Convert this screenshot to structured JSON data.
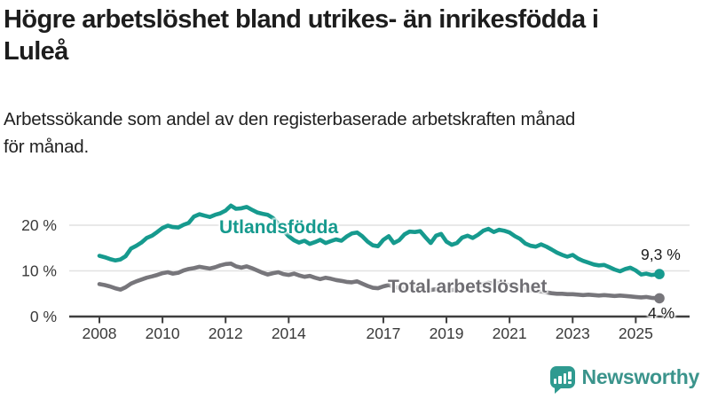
{
  "header": {
    "title_lines": [
      "Högre arbetslöshet bland utrikes- än inrikesfödda i",
      "Luleå"
    ],
    "subtitle_lines": [
      "Arbetssökande som andel av den registerbaserade arbetskraften månad",
      "för månad."
    ]
  },
  "colors": {
    "accent_teal": "#169a8e",
    "total_gray": "#77767b",
    "grid": "#e1e1e1",
    "axis": "#3f3f3f",
    "tick_label": "#3a3a3a",
    "logo_teal": "#3b948c"
  },
  "chart_data": {
    "type": "line",
    "grid": "horizontal-only",
    "x_axis": {
      "ticks": [
        2008,
        2010,
        2012,
        2014,
        2017,
        2019,
        2021,
        2023,
        2025
      ],
      "range": [
        2008,
        2025.75
      ]
    },
    "y_axis": {
      "ticks": [
        {
          "value": 0,
          "label": "0 %"
        },
        {
          "value": 10,
          "label": "10 %"
        },
        {
          "value": 20,
          "label": "20 %"
        }
      ],
      "range": [
        0,
        26
      ]
    },
    "series": [
      {
        "name": "Utlandsfödda",
        "color": "#169a8e",
        "end_label": "9,3 %",
        "end_value": 9.3,
        "points": [
          [
            2008.0,
            13.3
          ],
          [
            2008.17,
            13.0
          ],
          [
            2008.33,
            12.6
          ],
          [
            2008.5,
            12.3
          ],
          [
            2008.67,
            12.5
          ],
          [
            2008.83,
            13.2
          ],
          [
            2009.0,
            14.9
          ],
          [
            2009.17,
            15.5
          ],
          [
            2009.33,
            16.2
          ],
          [
            2009.5,
            17.2
          ],
          [
            2009.67,
            17.7
          ],
          [
            2009.83,
            18.5
          ],
          [
            2010.0,
            19.4
          ],
          [
            2010.17,
            19.9
          ],
          [
            2010.33,
            19.6
          ],
          [
            2010.5,
            19.5
          ],
          [
            2010.67,
            20.1
          ],
          [
            2010.83,
            20.5
          ],
          [
            2011.0,
            21.9
          ],
          [
            2011.17,
            22.4
          ],
          [
            2011.33,
            22.1
          ],
          [
            2011.5,
            21.8
          ],
          [
            2011.67,
            22.3
          ],
          [
            2011.83,
            22.6
          ],
          [
            2012.0,
            23.2
          ],
          [
            2012.17,
            24.3
          ],
          [
            2012.33,
            23.6
          ],
          [
            2012.5,
            23.7
          ],
          [
            2012.67,
            24.0
          ],
          [
            2012.83,
            23.4
          ],
          [
            2013.0,
            22.8
          ],
          [
            2013.17,
            22.5
          ],
          [
            2013.33,
            22.3
          ],
          [
            2013.5,
            21.6
          ],
          [
            2013.67,
            20.3
          ],
          [
            2013.83,
            18.8
          ],
          [
            2014.0,
            17.6
          ],
          [
            2014.17,
            16.7
          ],
          [
            2014.33,
            16.2
          ],
          [
            2014.5,
            16.6
          ],
          [
            2014.67,
            15.9
          ],
          [
            2014.83,
            16.3
          ],
          [
            2015.0,
            16.8
          ],
          [
            2015.17,
            16.1
          ],
          [
            2015.33,
            16.5
          ],
          [
            2015.5,
            16.9
          ],
          [
            2015.67,
            16.6
          ],
          [
            2015.83,
            17.5
          ],
          [
            2016.0,
            18.2
          ],
          [
            2016.17,
            18.4
          ],
          [
            2016.33,
            17.6
          ],
          [
            2016.5,
            16.4
          ],
          [
            2016.67,
            15.6
          ],
          [
            2016.83,
            15.4
          ],
          [
            2017.0,
            16.8
          ],
          [
            2017.17,
            17.6
          ],
          [
            2017.33,
            16.1
          ],
          [
            2017.5,
            16.7
          ],
          [
            2017.67,
            18.0
          ],
          [
            2017.83,
            18.6
          ],
          [
            2018.0,
            18.5
          ],
          [
            2018.17,
            18.7
          ],
          [
            2018.33,
            17.4
          ],
          [
            2018.5,
            16.1
          ],
          [
            2018.67,
            17.7
          ],
          [
            2018.83,
            18.1
          ],
          [
            2019.0,
            16.4
          ],
          [
            2019.17,
            15.7
          ],
          [
            2019.33,
            16.1
          ],
          [
            2019.5,
            17.3
          ],
          [
            2019.67,
            17.7
          ],
          [
            2019.83,
            17.2
          ],
          [
            2020.0,
            17.9
          ],
          [
            2020.17,
            18.8
          ],
          [
            2020.33,
            19.2
          ],
          [
            2020.5,
            18.5
          ],
          [
            2020.67,
            19.0
          ],
          [
            2020.83,
            18.8
          ],
          [
            2021.0,
            18.4
          ],
          [
            2021.17,
            17.6
          ],
          [
            2021.33,
            17.0
          ],
          [
            2021.5,
            16.0
          ],
          [
            2021.67,
            15.5
          ],
          [
            2021.83,
            15.3
          ],
          [
            2022.0,
            15.8
          ],
          [
            2022.17,
            15.3
          ],
          [
            2022.33,
            14.7
          ],
          [
            2022.5,
            14.0
          ],
          [
            2022.67,
            13.5
          ],
          [
            2022.83,
            13.1
          ],
          [
            2023.0,
            13.5
          ],
          [
            2023.17,
            12.7
          ],
          [
            2023.33,
            12.2
          ],
          [
            2023.5,
            11.8
          ],
          [
            2023.67,
            11.4
          ],
          [
            2023.83,
            11.2
          ],
          [
            2024.0,
            11.3
          ],
          [
            2024.17,
            10.8
          ],
          [
            2024.33,
            10.3
          ],
          [
            2024.5,
            9.9
          ],
          [
            2024.67,
            10.4
          ],
          [
            2024.83,
            10.7
          ],
          [
            2025.0,
            10.1
          ],
          [
            2025.17,
            9.2
          ],
          [
            2025.33,
            9.4
          ],
          [
            2025.5,
            9.1
          ],
          [
            2025.75,
            9.3
          ]
        ]
      },
      {
        "name": "Total arbetslöshet",
        "color": "#77767b",
        "end_label": "4 %",
        "end_value": 4.0,
        "points": [
          [
            2008.0,
            7.1
          ],
          [
            2008.17,
            6.9
          ],
          [
            2008.33,
            6.6
          ],
          [
            2008.5,
            6.2
          ],
          [
            2008.67,
            5.9
          ],
          [
            2008.83,
            6.4
          ],
          [
            2009.0,
            7.2
          ],
          [
            2009.17,
            7.7
          ],
          [
            2009.33,
            8.1
          ],
          [
            2009.5,
            8.5
          ],
          [
            2009.67,
            8.8
          ],
          [
            2009.83,
            9.1
          ],
          [
            2010.0,
            9.5
          ],
          [
            2010.17,
            9.7
          ],
          [
            2010.33,
            9.4
          ],
          [
            2010.5,
            9.6
          ],
          [
            2010.67,
            10.1
          ],
          [
            2010.83,
            10.4
          ],
          [
            2011.0,
            10.6
          ],
          [
            2011.17,
            10.9
          ],
          [
            2011.33,
            10.7
          ],
          [
            2011.5,
            10.5
          ],
          [
            2011.67,
            10.8
          ],
          [
            2011.83,
            11.2
          ],
          [
            2012.0,
            11.5
          ],
          [
            2012.17,
            11.6
          ],
          [
            2012.33,
            11.0
          ],
          [
            2012.5,
            10.7
          ],
          [
            2012.67,
            11.0
          ],
          [
            2012.83,
            10.6
          ],
          [
            2013.0,
            10.1
          ],
          [
            2013.17,
            9.6
          ],
          [
            2013.33,
            9.2
          ],
          [
            2013.5,
            9.5
          ],
          [
            2013.67,
            9.7
          ],
          [
            2013.83,
            9.3
          ],
          [
            2014.0,
            9.1
          ],
          [
            2014.17,
            9.4
          ],
          [
            2014.33,
            9.0
          ],
          [
            2014.5,
            8.7
          ],
          [
            2014.67,
            8.9
          ],
          [
            2014.83,
            8.5
          ],
          [
            2015.0,
            8.2
          ],
          [
            2015.17,
            8.5
          ],
          [
            2015.33,
            8.3
          ],
          [
            2015.5,
            8.0
          ],
          [
            2015.67,
            7.8
          ],
          [
            2015.83,
            7.6
          ],
          [
            2016.0,
            7.5
          ],
          [
            2016.17,
            7.7
          ],
          [
            2016.33,
            7.2
          ],
          [
            2016.5,
            6.7
          ],
          [
            2016.67,
            6.3
          ],
          [
            2016.83,
            6.2
          ],
          [
            2017.0,
            6.6
          ],
          [
            2017.17,
            6.9
          ],
          [
            2017.33,
            6.5
          ],
          [
            2017.5,
            6.3
          ],
          [
            2017.67,
            6.1
          ],
          [
            2017.83,
            6.2
          ],
          [
            2018.0,
            6.3
          ],
          [
            2018.17,
            6.1
          ],
          [
            2018.33,
            5.9
          ],
          [
            2018.5,
            5.8
          ],
          [
            2018.67,
            6.0
          ],
          [
            2018.83,
            6.1
          ],
          [
            2019.0,
            5.9
          ],
          [
            2019.17,
            5.8
          ],
          [
            2019.33,
            6.0
          ],
          [
            2019.5,
            6.1
          ],
          [
            2019.67,
            6.0
          ],
          [
            2019.83,
            6.2
          ],
          [
            2020.0,
            6.5
          ],
          [
            2020.17,
            7.1
          ],
          [
            2020.33,
            7.4
          ],
          [
            2020.5,
            7.2
          ],
          [
            2020.67,
            7.3
          ],
          [
            2020.83,
            7.1
          ],
          [
            2021.0,
            6.9
          ],
          [
            2021.17,
            6.6
          ],
          [
            2021.33,
            6.4
          ],
          [
            2021.5,
            6.1
          ],
          [
            2021.67,
            5.8
          ],
          [
            2021.83,
            5.6
          ],
          [
            2022.0,
            5.5
          ],
          [
            2022.17,
            5.3
          ],
          [
            2022.33,
            5.1
          ],
          [
            2022.5,
            5.0
          ],
          [
            2022.67,
            5.0
          ],
          [
            2022.83,
            4.9
          ],
          [
            2023.0,
            4.9
          ],
          [
            2023.17,
            4.8
          ],
          [
            2023.33,
            4.7
          ],
          [
            2023.5,
            4.8
          ],
          [
            2023.67,
            4.7
          ],
          [
            2023.83,
            4.6
          ],
          [
            2024.0,
            4.7
          ],
          [
            2024.17,
            4.6
          ],
          [
            2024.33,
            4.5
          ],
          [
            2024.5,
            4.6
          ],
          [
            2024.67,
            4.5
          ],
          [
            2024.83,
            4.4
          ],
          [
            2025.0,
            4.3
          ],
          [
            2025.17,
            4.2
          ],
          [
            2025.33,
            4.3
          ],
          [
            2025.5,
            4.1
          ],
          [
            2025.75,
            4.0
          ]
        ]
      }
    ]
  },
  "logo": {
    "text": "Newsworthy"
  }
}
